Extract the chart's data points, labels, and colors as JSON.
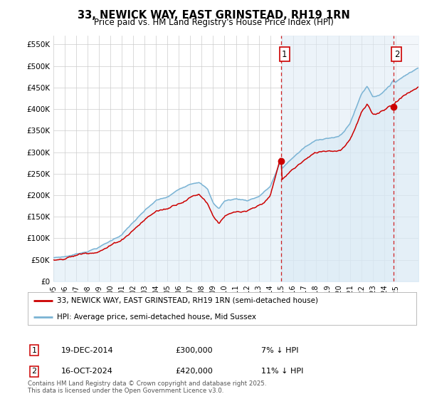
{
  "title": "33, NEWICK WAY, EAST GRINSTEAD, RH19 1RN",
  "subtitle": "Price paid vs. HM Land Registry's House Price Index (HPI)",
  "ylim": [
    0,
    570000
  ],
  "yticks": [
    0,
    50000,
    100000,
    150000,
    200000,
    250000,
    300000,
    350000,
    400000,
    450000,
    500000,
    550000
  ],
  "xlim_start": 1995.0,
  "xlim_end": 2027.0,
  "xticks": [
    1995,
    1996,
    1997,
    1998,
    1999,
    2000,
    2001,
    2002,
    2003,
    2004,
    2005,
    2006,
    2007,
    2008,
    2009,
    2010,
    2011,
    2012,
    2013,
    2014,
    2015,
    2016,
    2017,
    2018,
    2019,
    2020,
    2021,
    2022,
    2023,
    2024,
    2025
  ],
  "hpi_color": "#7ab3d4",
  "price_color": "#cc0000",
  "hpi_fill": "#d6e8f5",
  "shade_between_sales": "#deeaf5",
  "annotation_color": "#cc0000",
  "sale1_x": 2014.96,
  "sale1_y": 300000,
  "sale1_label": "1",
  "sale2_x": 2024.79,
  "sale2_y": 420000,
  "sale2_label": "2",
  "legend_line1": "33, NEWICK WAY, EAST GRINSTEAD, RH19 1RN (semi-detached house)",
  "legend_line2": "HPI: Average price, semi-detached house, Mid Sussex",
  "note1_label": "1",
  "note1_date": "19-DEC-2014",
  "note1_price": "£300,000",
  "note1_hpi": "7% ↓ HPI",
  "note2_label": "2",
  "note2_date": "16-OCT-2024",
  "note2_price": "£420,000",
  "note2_hpi": "11% ↓ HPI",
  "copyright": "Contains HM Land Registry data © Crown copyright and database right 2025.\nThis data is licensed under the Open Government Licence v3.0.",
  "bg_color": "#ffffff",
  "grid_color": "#cccccc"
}
